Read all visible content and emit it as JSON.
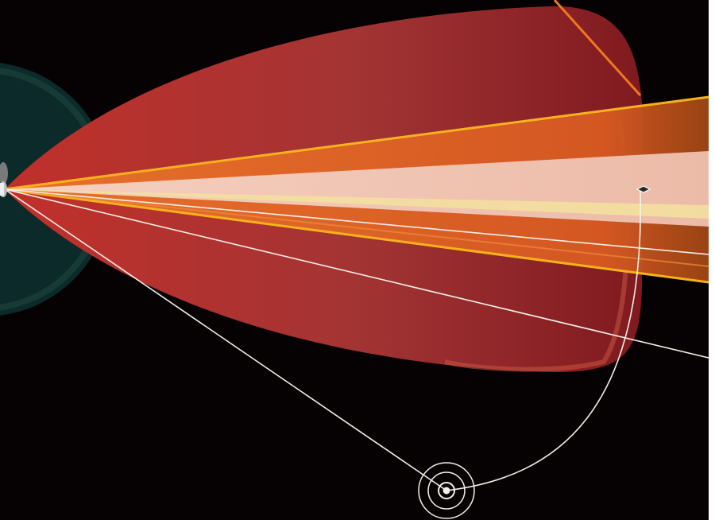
{
  "figure": {
    "labels": [],
    "colors": {
      "background": "#060203",
      "teal_disk": "#0d2a2a",
      "teal_rim": "#133a33",
      "red_envelope": "#c1302a",
      "red_envelope_dark": "#7f1a1f",
      "orange_band": "#e06a25",
      "orange_edge": "#f6b21c",
      "pale_core": "#f1c6b4",
      "yellow_streak": "#f3df9e",
      "white_lines": "#f4efe6"
    },
    "elements": [
      {
        "name": "teal-disk",
        "kind": "circle"
      },
      {
        "name": "red-envelope",
        "kind": "lobe"
      },
      {
        "name": "orange-fan",
        "kind": "band"
      },
      {
        "name": "pale-core",
        "kind": "band"
      },
      {
        "name": "white-lines",
        "kind": "line-group",
        "count": 3
      },
      {
        "name": "curved-path",
        "kind": "curve"
      },
      {
        "name": "concentric-marker",
        "kind": "target",
        "rings": 4
      },
      {
        "name": "diamond-marker",
        "kind": "point"
      }
    ]
  }
}
